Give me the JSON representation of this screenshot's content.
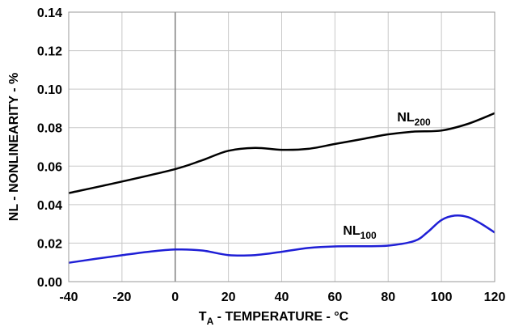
{
  "chart_data": {
    "type": "line",
    "title": "",
    "xlabel": {
      "main": "T",
      "sub": "A",
      "rest": " - TEMPERATURE - °C"
    },
    "ylabel": "NL - NONLINEARITY - %",
    "xlim": [
      -40,
      120
    ],
    "ylim": [
      0,
      0.14
    ],
    "grid": true,
    "x_ticks": [
      "-40",
      "-20",
      "0",
      "20",
      "40",
      "60",
      "80",
      "100",
      "120"
    ],
    "y_ticks": [
      "0.00",
      "0.02",
      "0.04",
      "0.06",
      "0.08",
      "0.10",
      "0.12",
      "0.14"
    ],
    "series": [
      {
        "name": "NL200",
        "label_main": "NL",
        "label_sub": "200",
        "color": "#000000",
        "x": [
          -40,
          -20,
          0,
          10,
          20,
          30,
          40,
          50,
          60,
          70,
          80,
          90,
          100,
          110,
          120
        ],
        "y": [
          0.046,
          0.052,
          0.0585,
          0.063,
          0.068,
          0.0695,
          0.0685,
          0.069,
          0.0715,
          0.074,
          0.0765,
          0.078,
          0.0785,
          0.082,
          0.0875
        ]
      },
      {
        "name": "NL100",
        "label_main": "NL",
        "label_sub": "100",
        "color": "#1f1fd6",
        "x": [
          -40,
          -30,
          -20,
          -10,
          0,
          10,
          20,
          30,
          40,
          50,
          60,
          70,
          80,
          90,
          95,
          100,
          105,
          110,
          115,
          120
        ],
        "y": [
          0.0098,
          0.0118,
          0.0137,
          0.0155,
          0.0167,
          0.0162,
          0.0138,
          0.0138,
          0.0155,
          0.0175,
          0.0183,
          0.0184,
          0.0187,
          0.0212,
          0.026,
          0.032,
          0.0343,
          0.0335,
          0.03,
          0.0255
        ]
      }
    ],
    "reference_line_x": 0
  }
}
